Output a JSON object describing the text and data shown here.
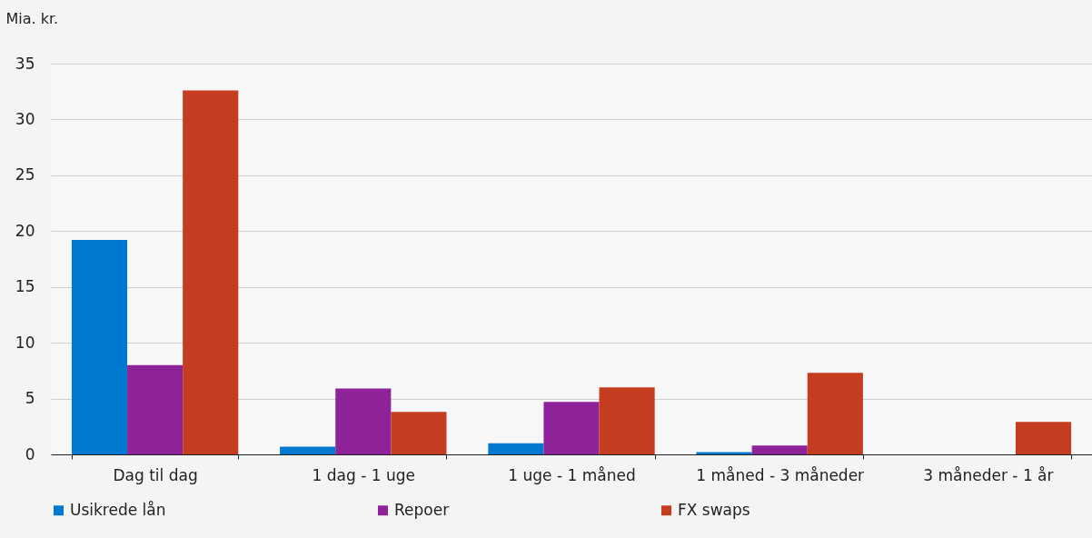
{
  "chart_data": {
    "type": "bar",
    "ylabel": "Mia. kr.",
    "categories": [
      "Dag til dag",
      "1 dag - 1 uge",
      "1 uge - 1 måned",
      "1 måned - 3 måneder",
      "3 måneder - 1 år"
    ],
    "series": [
      {
        "name": "Usikrede lån",
        "color": "#0078d0",
        "values": [
          19.2,
          0.7,
          1.0,
          0.2,
          null
        ]
      },
      {
        "name": "Repoer",
        "color": "#8e2399",
        "values": [
          8.0,
          5.9,
          4.7,
          0.8,
          null
        ]
      },
      {
        "name": "FX swaps",
        "color": "#c43d21",
        "values": [
          32.6,
          3.8,
          6.0,
          7.3,
          2.9
        ]
      }
    ],
    "ylim": [
      0,
      35
    ],
    "yticks": [
      0,
      5,
      10,
      15,
      20,
      25,
      30,
      35
    ],
    "grid": "y",
    "legend": "bottom"
  }
}
